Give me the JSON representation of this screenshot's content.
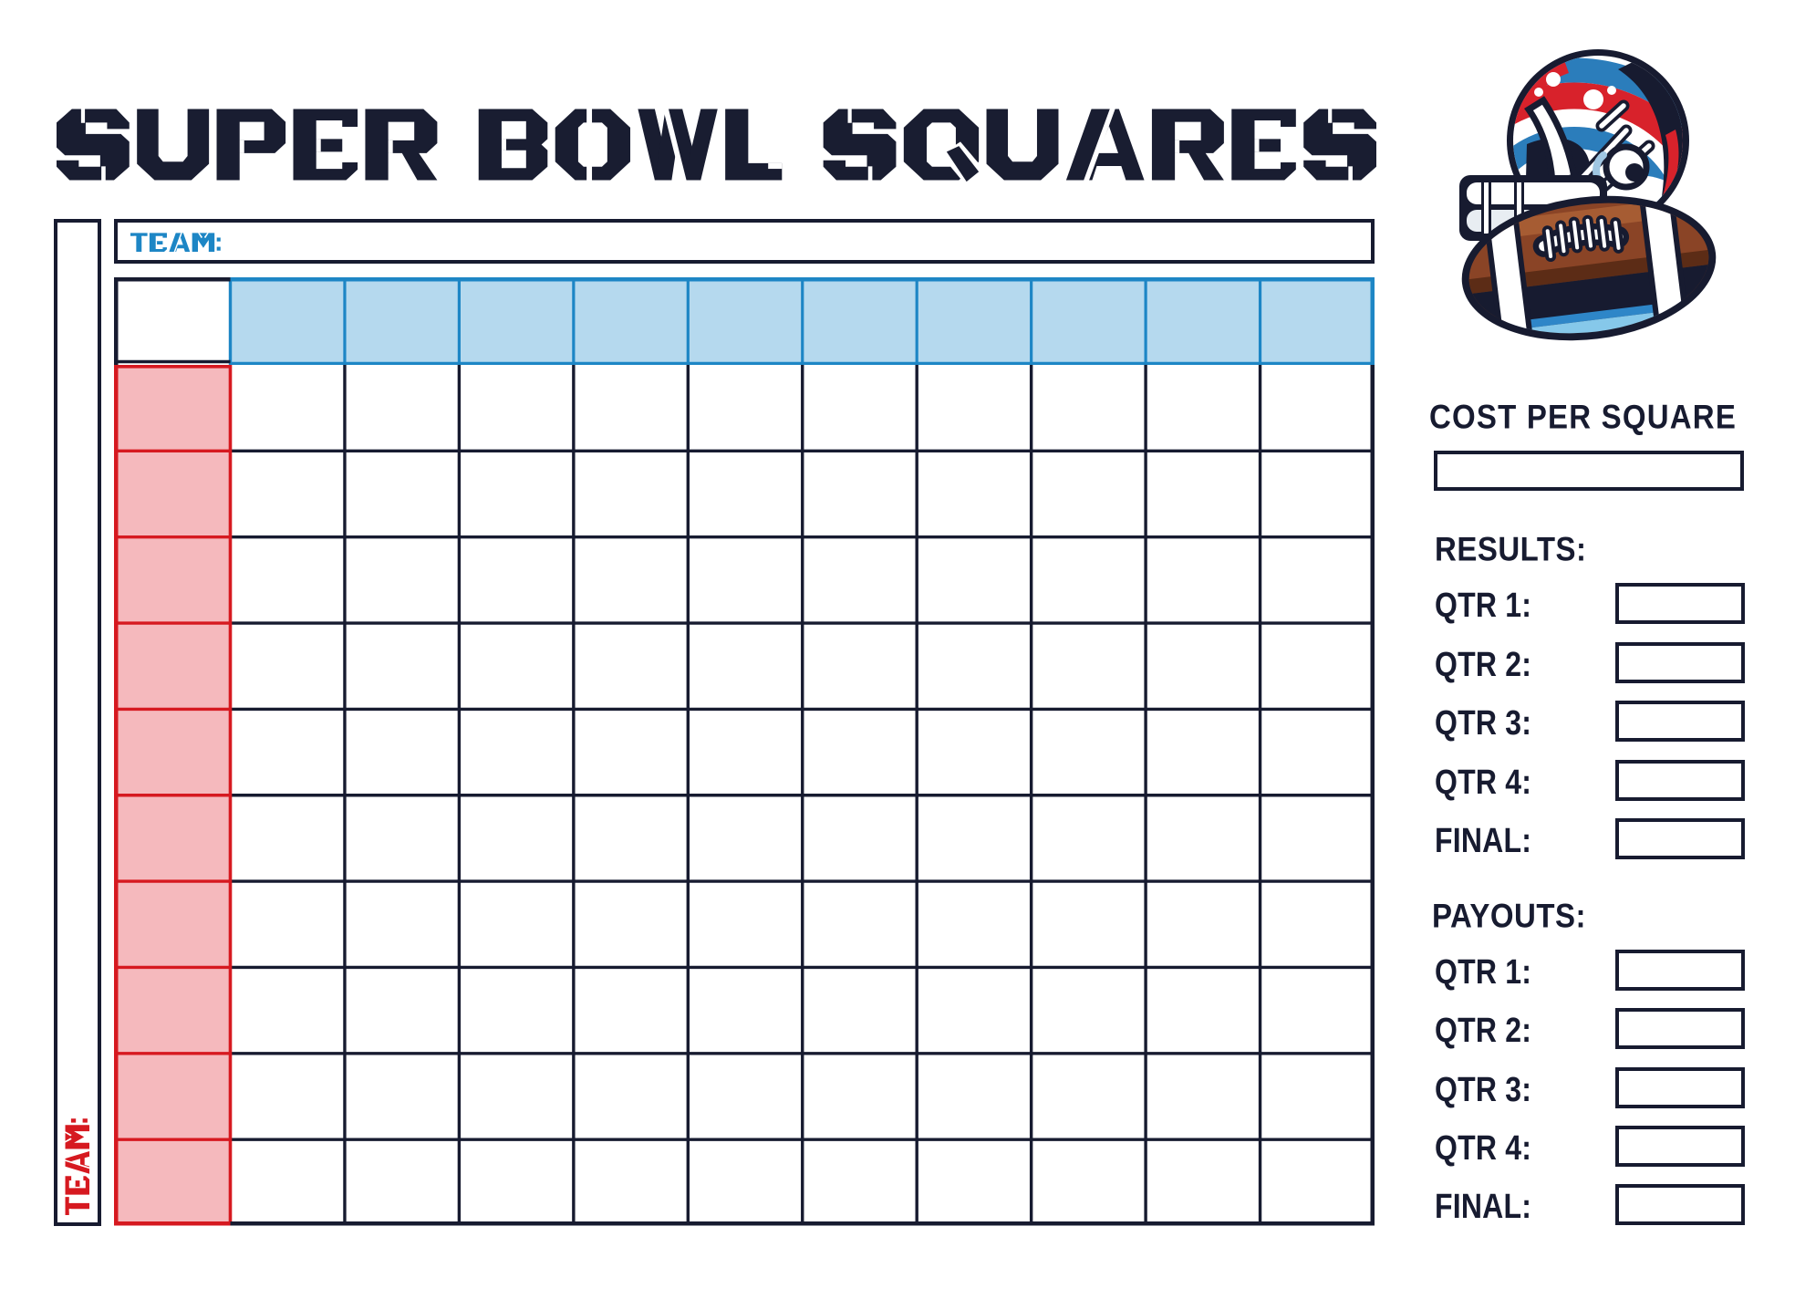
{
  "title": "SUPER BOWL SQUARES",
  "top_team": {
    "label": "TEAM:",
    "value": ""
  },
  "left_team": {
    "label": "TEAM:",
    "value": ""
  },
  "grid": {
    "rows": 10,
    "cols": 10,
    "header_row_values": [
      "",
      "",
      "",
      "",
      "",
      "",
      "",
      "",
      "",
      ""
    ],
    "header_col_values": [
      "",
      "",
      "",
      "",
      "",
      "",
      "",
      "",
      "",
      ""
    ],
    "cell_values": []
  },
  "panel": {
    "cost_heading": "COST PER SQUARE",
    "cost_value": "",
    "results_heading": "RESULTS:",
    "results_rows": [
      {
        "label": "QTR 1:",
        "value": ""
      },
      {
        "label": "QTR 2:",
        "value": ""
      },
      {
        "label": "QTR 3:",
        "value": ""
      },
      {
        "label": "QTR 4:",
        "value": ""
      },
      {
        "label": "FINAL:",
        "value": ""
      }
    ],
    "payouts_heading": "PAYOUTS:",
    "payouts_rows": [
      {
        "label": "QTR 1:",
        "value": ""
      },
      {
        "label": "QTR 2:",
        "value": ""
      },
      {
        "label": "QTR 3:",
        "value": ""
      },
      {
        "label": "QTR 4:",
        "value": ""
      },
      {
        "label": "FINAL:",
        "value": ""
      }
    ]
  },
  "illustration": "football-helmet-and-ball",
  "colors": {
    "ink": "#171b30",
    "title": "#191d31",
    "blue": "#1d86c5",
    "blue_fill": "#b5d9ee",
    "red": "#d61920",
    "red_fill": "#f5b9bd",
    "background": "#ffffff"
  }
}
